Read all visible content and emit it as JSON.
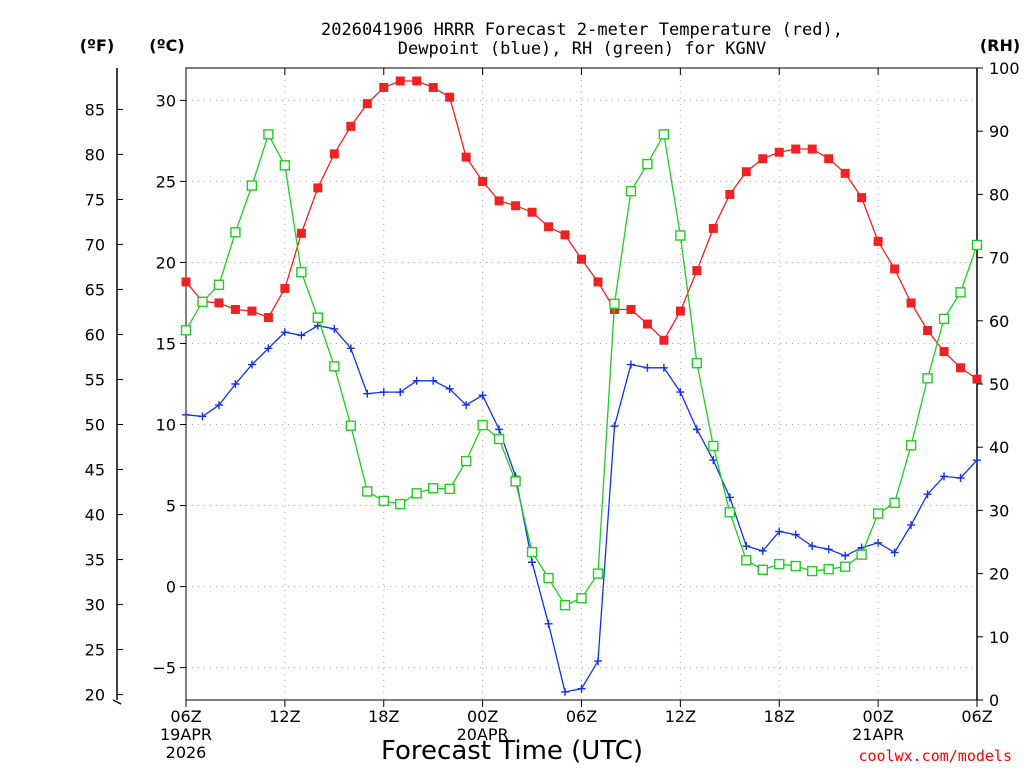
{
  "chart_data": {
    "type": "line",
    "title_line1": "2026041906 HRRR Forecast 2-meter Temperature (red),",
    "title_line2": "Dewpoint (blue), RH (green) for KGNV",
    "xlabel": "Forecast Time (UTC)",
    "credit": "coolwx.com/models",
    "credit_color": "#ff0000",
    "units": {
      "fahrenheit": "(ºF)",
      "celsius": "(ºC)",
      "rh": "(RH)"
    },
    "axes": {
      "celsius": {
        "range": [
          -7,
          32
        ],
        "ticks": [
          -5,
          0,
          5,
          10,
          15,
          20,
          25,
          30
        ]
      },
      "fahrenheit": {
        "ticks": [
          20,
          25,
          30,
          35,
          40,
          45,
          50,
          55,
          60,
          65,
          70,
          75,
          80,
          85
        ]
      },
      "rh": {
        "range": [
          0,
          100
        ],
        "ticks": [
          0,
          10,
          20,
          30,
          40,
          50,
          60,
          70,
          80,
          90,
          100
        ]
      },
      "x": {
        "range": [
          0,
          48
        ]
      }
    },
    "x_ticks": [
      {
        "x": 0,
        "lines": [
          "06Z",
          "19APR",
          "2026"
        ]
      },
      {
        "x": 6,
        "lines": [
          "12Z"
        ]
      },
      {
        "x": 12,
        "lines": [
          "18Z"
        ]
      },
      {
        "x": 18,
        "lines": [
          "00Z",
          "20APR"
        ]
      },
      {
        "x": 24,
        "lines": [
          "06Z"
        ]
      },
      {
        "x": 30,
        "lines": [
          "12Z"
        ]
      },
      {
        "x": 36,
        "lines": [
          "18Z"
        ]
      },
      {
        "x": 42,
        "lines": [
          "00Z",
          "21APR"
        ]
      },
      {
        "x": 48,
        "lines": [
          "06Z"
        ]
      }
    ],
    "series": [
      {
        "name": "Temperature",
        "axis": "celsius",
        "color": "#ee2222",
        "marker": "filled-square",
        "values": [
          18.8,
          17.6,
          17.5,
          17.1,
          17.0,
          16.6,
          18.4,
          21.8,
          24.6,
          26.7,
          28.4,
          29.8,
          30.8,
          31.2,
          31.2,
          30.8,
          30.2,
          26.5,
          25.0,
          23.8,
          23.5,
          23.1,
          22.2,
          21.7,
          20.2,
          18.8,
          17.1,
          17.1,
          16.2,
          15.2,
          17.0,
          19.5,
          22.1,
          24.2,
          25.6,
          26.4,
          26.8,
          27.0,
          27.0,
          26.4,
          25.5,
          24.0,
          21.3,
          19.6,
          17.5,
          15.8,
          14.5,
          13.5,
          12.8
        ]
      },
      {
        "name": "Dewpoint",
        "axis": "celsius",
        "color": "#1133ee",
        "marker": "plus",
        "values": [
          10.6,
          10.5,
          11.2,
          12.5,
          13.7,
          14.7,
          15.7,
          15.5,
          16.1,
          15.9,
          14.7,
          11.9,
          12.0,
          12.0,
          12.7,
          12.7,
          12.2,
          11.2,
          11.8,
          9.7,
          6.8,
          1.5,
          -2.3,
          -6.5,
          -6.3,
          -4.6,
          9.9,
          13.7,
          13.5,
          13.5,
          12.0,
          9.7,
          7.8,
          5.5,
          2.5,
          2.2,
          3.4,
          3.2,
          2.5,
          2.3,
          1.9,
          2.4,
          2.7,
          2.1,
          3.8,
          5.7,
          6.8,
          6.7,
          7.8
        ]
      },
      {
        "name": "RH",
        "axis": "rh",
        "color": "#22cc22",
        "marker": "open-square",
        "values": [
          58.5,
          63.0,
          65.7,
          74.0,
          81.4,
          89.5,
          84.6,
          67.7,
          60.5,
          52.8,
          43.4,
          33.0,
          31.5,
          31.0,
          32.7,
          33.5,
          33.4,
          37.8,
          43.5,
          41.3,
          34.6,
          23.4,
          19.3,
          15.0,
          16.1,
          20.0,
          62.7,
          80.5,
          84.8,
          89.5,
          73.5,
          53.3,
          40.2,
          29.7,
          22.1,
          20.6,
          21.5,
          21.2,
          20.4,
          20.7,
          21.1,
          23.0,
          29.5,
          31.2,
          40.3,
          50.9,
          60.3,
          64.5,
          72.0
        ]
      }
    ]
  }
}
